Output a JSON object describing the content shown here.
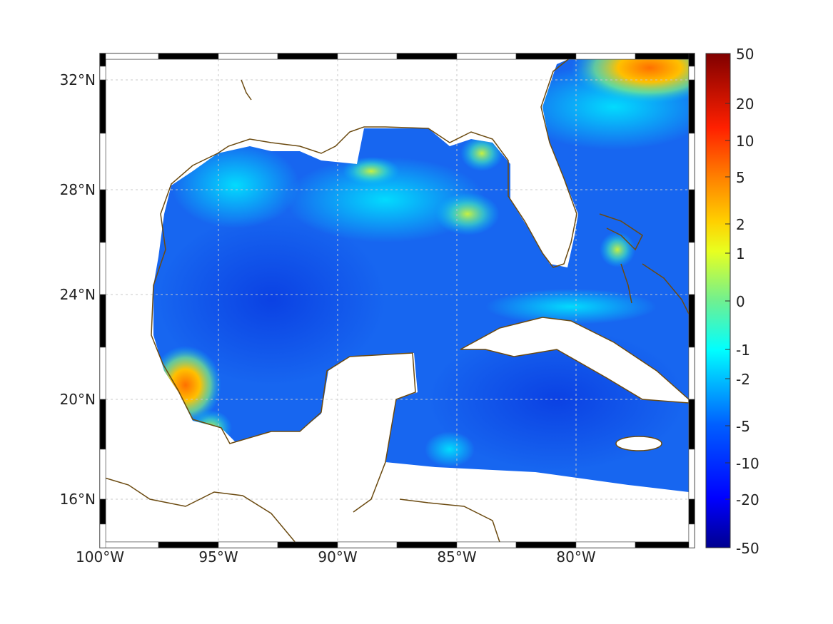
{
  "map": {
    "region": "Gulf of Mexico",
    "lon_ticks": [
      "100°W",
      "95°W",
      "90°W",
      "85°W",
      "80°W"
    ],
    "lat_ticks": [
      "32°N",
      "28°N",
      "24°N",
      "20°N",
      "16°N"
    ]
  },
  "colorbar": {
    "ticks": [
      "50",
      "20",
      "10",
      "5",
      "2",
      "1",
      "0",
      "-1",
      "-2",
      "-5",
      "-10",
      "-20",
      "-50"
    ],
    "range": [
      -50,
      50
    ],
    "colormap": [
      "#00008f",
      "#0000ff",
      "#0080ff",
      "#00ffff",
      "#80ff80",
      "#ffff00",
      "#ff8000",
      "#ff0000",
      "#800000"
    ]
  },
  "colors": {
    "coastline": "#6b4a10",
    "ocean_base": "#1766f0",
    "grid": "#c8c8c8"
  }
}
